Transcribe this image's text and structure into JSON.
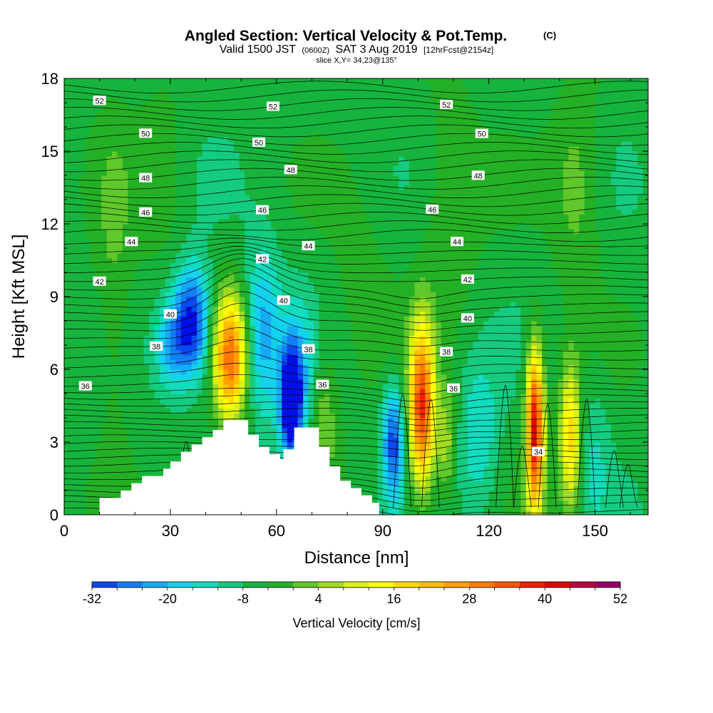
{
  "chart_data": {
    "type": "heatmap",
    "title_main": "Angled Section: Vertical Velocity & Pot.Temp.",
    "title_unit": "(C)",
    "subtitle_a": "Valid 1500 JST",
    "subtitle_b": "(0600Z)",
    "subtitle_c": "SAT 3 Aug 2019",
    "subtitle_d": "[12hrFcst@2154z]",
    "subtitle_slice": "slice X,Y= 34,23@135°",
    "xlabel": "Distance [nm]",
    "ylabel": "Height [Kft MSL]",
    "xlim": [
      0,
      165
    ],
    "ylim": [
      0,
      18
    ],
    "x_ticks": [
      {
        "v": 0,
        "label": "0"
      },
      {
        "v": 30,
        "label": "30"
      },
      {
        "v": 60,
        "label": "60"
      },
      {
        "v": 90,
        "label": "90"
      },
      {
        "v": 120,
        "label": "120"
      },
      {
        "v": 150,
        "label": "150"
      }
    ],
    "y_ticks": [
      {
        "v": 0,
        "label": "0"
      },
      {
        "v": 3,
        "label": "3"
      },
      {
        "v": 6,
        "label": "6"
      },
      {
        "v": 9,
        "label": "9"
      },
      {
        "v": 12,
        "label": "12"
      },
      {
        "v": 15,
        "label": "15"
      },
      {
        "v": 18,
        "label": "18"
      }
    ],
    "colorbar": {
      "label": "Vertical Velocity [cm/s]",
      "min": -32,
      "max": 52,
      "step": 4,
      "ticks": [
        {
          "v": -32,
          "label": "-32"
        },
        {
          "v": -20,
          "label": "-20"
        },
        {
          "v": -8,
          "label": "-8"
        },
        {
          "v": 4,
          "label": "4"
        },
        {
          "v": 16,
          "label": "16"
        },
        {
          "v": 28,
          "label": "28"
        },
        {
          "v": 40,
          "label": "40"
        },
        {
          "v": 52,
          "label": "52"
        }
      ],
      "colors": [
        "#0010e6",
        "#0a4af0",
        "#127ff5",
        "#18aaf5",
        "#14d2ee",
        "#12dcbe",
        "#14cc80",
        "#16b43c",
        "#24b024",
        "#60c82a",
        "#a0dc20",
        "#dcf20c",
        "#ffff00",
        "#ffdc00",
        "#ffbe00",
        "#ffa000",
        "#ff7c00",
        "#ff5400",
        "#f82000",
        "#e00000",
        "#be003c",
        "#960064",
        "#6a0080"
      ]
    },
    "background_wind": -2,
    "features": [
      {
        "x": 36,
        "y": 7.9,
        "sx": 3.5,
        "sy": 1.6,
        "v": -30
      },
      {
        "x": 30,
        "y": 7.0,
        "sx": 3.0,
        "sy": 1.3,
        "v": -14
      },
      {
        "x": 47,
        "y": 6.5,
        "sx": 3.3,
        "sy": 1.8,
        "v": 36
      },
      {
        "x": 56,
        "y": 7.5,
        "sx": 3.5,
        "sy": 2.5,
        "v": -16
      },
      {
        "x": 64,
        "y": 4.6,
        "sx": 2.0,
        "sy": 1.5,
        "v": -34
      },
      {
        "x": 66,
        "y": 5.5,
        "sx": 3.5,
        "sy": 2.2,
        "v": -14
      },
      {
        "x": 73,
        "y": 4.0,
        "sx": 3.0,
        "sy": 2.0,
        "v": 10
      },
      {
        "x": 93,
        "y": 3.0,
        "sx": 2.2,
        "sy": 1.6,
        "v": -24
      },
      {
        "x": 101,
        "y": 4.4,
        "sx": 2.5,
        "sy": 2.4,
        "v": 42
      },
      {
        "x": 108,
        "y": 3.0,
        "sx": 2.0,
        "sy": 1.6,
        "v": 12
      },
      {
        "x": 117,
        "y": 3.2,
        "sx": 4.0,
        "sy": 2.2,
        "v": -10
      },
      {
        "x": 133,
        "y": 3.5,
        "sx": 1.8,
        "sy": 2.4,
        "v": 48
      },
      {
        "x": 143,
        "y": 3.2,
        "sx": 2.2,
        "sy": 2.2,
        "v": 24
      },
      {
        "x": 150,
        "y": 2.5,
        "sx": 3.0,
        "sy": 2.2,
        "v": -6
      },
      {
        "x": 14,
        "y": 9.5,
        "sx": 4.0,
        "sy": 5.0,
        "v": 6
      },
      {
        "x": 28,
        "y": 14.0,
        "sx": 5.0,
        "sy": 3.0,
        "v": 4
      },
      {
        "x": 109,
        "y": 13.0,
        "sx": 6.0,
        "sy": 3.5,
        "v": 6
      },
      {
        "x": 145,
        "y": 13.5,
        "sx": 5.0,
        "sy": 3.0,
        "v": 8
      },
      {
        "x": 84,
        "y": 9.0,
        "sx": 6.0,
        "sy": 3.0,
        "v": 4
      }
    ],
    "terrain": [
      [
        0,
        0
      ],
      [
        10,
        0
      ],
      [
        10,
        0.7
      ],
      [
        16,
        0.7
      ],
      [
        16,
        1.0
      ],
      [
        19,
        1.0
      ],
      [
        19,
        1.3
      ],
      [
        22,
        1.3
      ],
      [
        22,
        1.6
      ],
      [
        28,
        1.6
      ],
      [
        28,
        1.9
      ],
      [
        30,
        1.9
      ],
      [
        30,
        2.2
      ],
      [
        33,
        2.2
      ],
      [
        33,
        2.6
      ],
      [
        36,
        2.6
      ],
      [
        36,
        2.9
      ],
      [
        39,
        2.9
      ],
      [
        39,
        3.2
      ],
      [
        42,
        3.2
      ],
      [
        42,
        3.5
      ],
      [
        45,
        3.5
      ],
      [
        45,
        3.9
      ],
      [
        52,
        3.9
      ],
      [
        52,
        3.3
      ],
      [
        55,
        3.3
      ],
      [
        55,
        2.8
      ],
      [
        58,
        2.8
      ],
      [
        58,
        2.5
      ],
      [
        61,
        2.5
      ],
      [
        61,
        2.3
      ],
      [
        62,
        2.3
      ],
      [
        62,
        2.7
      ],
      [
        65,
        2.7
      ],
      [
        65,
        3.6
      ],
      [
        72,
        3.6
      ],
      [
        72,
        2.8
      ],
      [
        75,
        2.8
      ],
      [
        75,
        2.0
      ],
      [
        78,
        2.0
      ],
      [
        78,
        1.4
      ],
      [
        81,
        1.4
      ],
      [
        81,
        1.1
      ],
      [
        84,
        1.1
      ],
      [
        84,
        0.8
      ],
      [
        87,
        0.8
      ],
      [
        87,
        0.5
      ],
      [
        89,
        0.5
      ],
      [
        89,
        0
      ]
    ],
    "isentropes": [
      {
        "level": 52,
        "labels": [
          {
            "x": 10,
            "label": "52"
          },
          {
            "x": 59,
            "label": "52"
          },
          {
            "x": 108,
            "label": "52"
          }
        ]
      },
      {
        "level": 50,
        "labels": [
          {
            "x": 23,
            "label": "50"
          },
          {
            "x": 55,
            "label": "50"
          },
          {
            "x": 118,
            "label": "50"
          }
        ]
      },
      {
        "level": 48,
        "labels": [
          {
            "x": 23,
            "label": "48"
          },
          {
            "x": 64,
            "label": "48"
          },
          {
            "x": 117,
            "label": "48"
          }
        ]
      },
      {
        "level": 46,
        "labels": [
          {
            "x": 23,
            "label": "46"
          },
          {
            "x": 56,
            "label": "46"
          },
          {
            "x": 104,
            "label": "46"
          }
        ]
      },
      {
        "level": 44,
        "labels": [
          {
            "x": 19,
            "label": "44"
          },
          {
            "x": 69,
            "label": "44"
          },
          {
            "x": 111,
            "label": "44"
          }
        ]
      },
      {
        "level": 42,
        "labels": [
          {
            "x": 10,
            "label": "42"
          },
          {
            "x": 56,
            "label": "42"
          },
          {
            "x": 114,
            "label": "42"
          }
        ]
      },
      {
        "level": 40,
        "labels": [
          {
            "x": 30,
            "label": "40"
          },
          {
            "x": 62,
            "label": "40"
          },
          {
            "x": 114,
            "label": "40"
          }
        ]
      },
      {
        "level": 38,
        "labels": [
          {
            "x": 26,
            "label": "38"
          },
          {
            "x": 69,
            "label": "38"
          },
          {
            "x": 108,
            "label": "38"
          }
        ]
      },
      {
        "level": 36,
        "labels": [
          {
            "x": 6,
            "label": "36"
          },
          {
            "x": 73,
            "label": "36"
          },
          {
            "x": 110,
            "label": "36"
          }
        ]
      },
      {
        "level": 34,
        "labels": [
          {
            "x": 134,
            "label": "34"
          }
        ]
      }
    ]
  }
}
